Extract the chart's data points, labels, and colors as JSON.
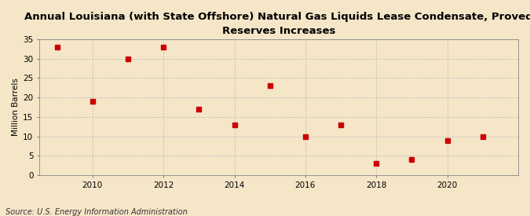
{
  "title_line1": "Annual Louisiana (with State Offshore) Natural Gas Liquids Lease Condensate, Proved",
  "title_line2": "Reserves Increases",
  "ylabel": "Million Barrels",
  "source": "Source: U.S. Energy Information Administration",
  "years": [
    2009,
    2010,
    2011,
    2012,
    2013,
    2014,
    2015,
    2016,
    2017,
    2018,
    2019,
    2020,
    2021
  ],
  "values": [
    33.0,
    19.0,
    30.0,
    33.0,
    17.0,
    13.0,
    23.0,
    10.0,
    13.0,
    3.0,
    4.0,
    9.0,
    10.0
  ],
  "marker_color": "#cc0000",
  "marker_size": 4,
  "background_color": "#f5e6c8",
  "plot_bg_color": "#f5e6c8",
  "grid_color": "#bbbbbb",
  "ylim": [
    0,
    35
  ],
  "yticks": [
    0,
    5,
    10,
    15,
    20,
    25,
    30,
    35
  ],
  "xtick_years": [
    2010,
    2012,
    2014,
    2016,
    2018,
    2020
  ],
  "xlim": [
    2008.5,
    2022.0
  ],
  "title_fontsize": 9.5,
  "label_fontsize": 7.5,
  "tick_fontsize": 7.5,
  "source_fontsize": 7.0
}
